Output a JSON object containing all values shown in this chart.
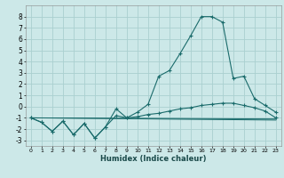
{
  "xlabel": "Humidex (Indice chaleur)",
  "bg_color": "#cce8e8",
  "grid_color": "#aad0d0",
  "line_color": "#1a6b6b",
  "marker": "+",
  "xlim": [
    -0.5,
    23.5
  ],
  "ylim": [
    -3.5,
    9.0
  ],
  "xticks": [
    0,
    1,
    2,
    3,
    4,
    5,
    6,
    7,
    8,
    9,
    10,
    11,
    12,
    13,
    14,
    15,
    16,
    17,
    18,
    19,
    20,
    21,
    22,
    23
  ],
  "yticks": [
    -3,
    -2,
    -1,
    0,
    1,
    2,
    3,
    4,
    5,
    6,
    7,
    8
  ],
  "series_main": [
    [
      0,
      -1.0
    ],
    [
      1,
      -1.4
    ],
    [
      2,
      -2.2
    ],
    [
      3,
      -1.3
    ],
    [
      4,
      -2.5
    ],
    [
      5,
      -1.5
    ],
    [
      6,
      -2.8
    ],
    [
      7,
      -1.8
    ],
    [
      8,
      -0.2
    ],
    [
      9,
      -1.0
    ],
    [
      10,
      -0.5
    ],
    [
      11,
      0.2
    ],
    [
      12,
      2.7
    ],
    [
      13,
      3.2
    ],
    [
      14,
      4.7
    ],
    [
      15,
      6.3
    ],
    [
      16,
      8.0
    ],
    [
      17,
      8.0
    ],
    [
      18,
      7.5
    ],
    [
      19,
      2.5
    ],
    [
      20,
      2.7
    ],
    [
      21,
      0.7
    ],
    [
      22,
      0.1
    ],
    [
      23,
      -0.5
    ]
  ],
  "series_gradual": [
    [
      0,
      -1.0
    ],
    [
      1,
      -1.4
    ],
    [
      2,
      -2.2
    ],
    [
      3,
      -1.3
    ],
    [
      4,
      -2.5
    ],
    [
      5,
      -1.5
    ],
    [
      6,
      -2.8
    ],
    [
      7,
      -1.8
    ],
    [
      8,
      -0.8
    ],
    [
      9,
      -1.0
    ],
    [
      10,
      -0.9
    ],
    [
      11,
      -0.7
    ],
    [
      12,
      -0.6
    ],
    [
      13,
      -0.4
    ],
    [
      14,
      -0.2
    ],
    [
      15,
      -0.1
    ],
    [
      16,
      0.1
    ],
    [
      17,
      0.2
    ],
    [
      18,
      0.3
    ],
    [
      19,
      0.3
    ],
    [
      20,
      0.1
    ],
    [
      21,
      -0.1
    ],
    [
      22,
      -0.4
    ],
    [
      23,
      -1.0
    ]
  ],
  "series_flat1": [
    [
      0,
      -1.0
    ],
    [
      23,
      -1.1
    ]
  ],
  "series_flat2": [
    [
      0,
      -1.0
    ],
    [
      23,
      -1.2
    ]
  ]
}
